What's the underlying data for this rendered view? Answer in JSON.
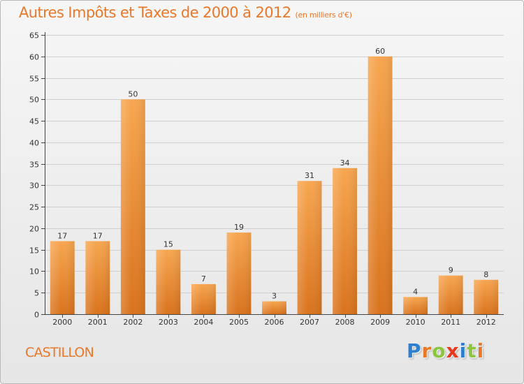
{
  "header": {
    "title": "Autres Impôts et Taxes de 2000 à 2012",
    "unit": "(en milliers d'€)"
  },
  "footer": {
    "commune": "CASTILLON",
    "logo_letters": [
      {
        "ch": "P",
        "color": "#2f7fd0"
      },
      {
        "ch": "r",
        "color": "#e8782a"
      },
      {
        "ch": "o",
        "color": "#8cc63f"
      },
      {
        "ch": "x",
        "color": "#e53a1c"
      },
      {
        "ch": "i",
        "color": "#2f7fd0"
      },
      {
        "ch": "t",
        "color": "#8cc63f"
      },
      {
        "ch": "i",
        "color": "#e8782a"
      }
    ]
  },
  "colors": {
    "bar_top": "#f7a650",
    "bar_bottom": "#d9731d",
    "accent": "#e8782a",
    "axis": "#444444",
    "grid": "#cfcfcf"
  },
  "chart_data": {
    "type": "bar",
    "title": "Autres Impôts et Taxes de 2000 à 2012",
    "subtitle": "(en milliers d'€)",
    "categories": [
      "2000",
      "2001",
      "2002",
      "2003",
      "2004",
      "2005",
      "2006",
      "2007",
      "2008",
      "2009",
      "2010",
      "2011",
      "2012"
    ],
    "values": [
      17,
      17,
      50,
      15,
      7,
      19,
      3,
      31,
      34,
      60,
      4,
      9,
      8
    ],
    "data_labels": [
      "17",
      "17",
      "50",
      "15",
      "7",
      "19",
      "3",
      "31",
      "34",
      "60",
      "4",
      "9",
      "8"
    ],
    "ylim": [
      0,
      65
    ],
    "yticks": [
      0,
      5,
      10,
      15,
      20,
      25,
      30,
      35,
      40,
      45,
      50,
      55,
      60,
      65
    ],
    "grid": true,
    "xlabel": "",
    "ylabel": ""
  }
}
